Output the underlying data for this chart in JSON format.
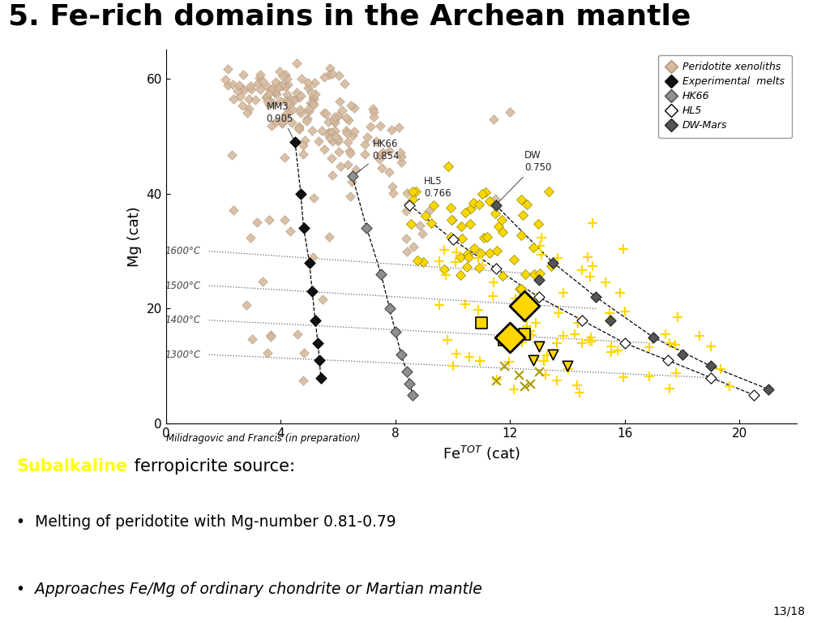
{
  "title": "5. Fe-rich domains in the Archean mantle",
  "title_fontsize": 26,
  "xlabel": "Fe$^{TOT}$ (cat)",
  "ylabel": "Mg (cat)",
  "xlim": [
    0,
    22
  ],
  "ylim": [
    0,
    65
  ],
  "xticks": [
    0,
    4,
    8,
    12,
    16,
    20
  ],
  "yticks": [
    0,
    20,
    40,
    60
  ],
  "citation": "Milidragovic and Francis (in preparation)",
  "page_num": "13/18",
  "bottom_text2": "Melting of peridotite with Mg-number 0.81-0.79",
  "bottom_text3": "Approaches Fe/Mg of ordinary chondrite or Martian mantle",
  "bottom_bg": "#969696",
  "subalkaline_color": "#FFFF00",
  "peridotite_color": "#D4BAA0",
  "peridotite_edge": "#B09070",
  "mm3_color": "#111111",
  "hk66_color": "#909090",
  "hl5_color": "#ffffff",
  "dw_mars_color": "#555555",
  "yellow_color": "#FFD700",
  "yellow_edge": "#888800"
}
